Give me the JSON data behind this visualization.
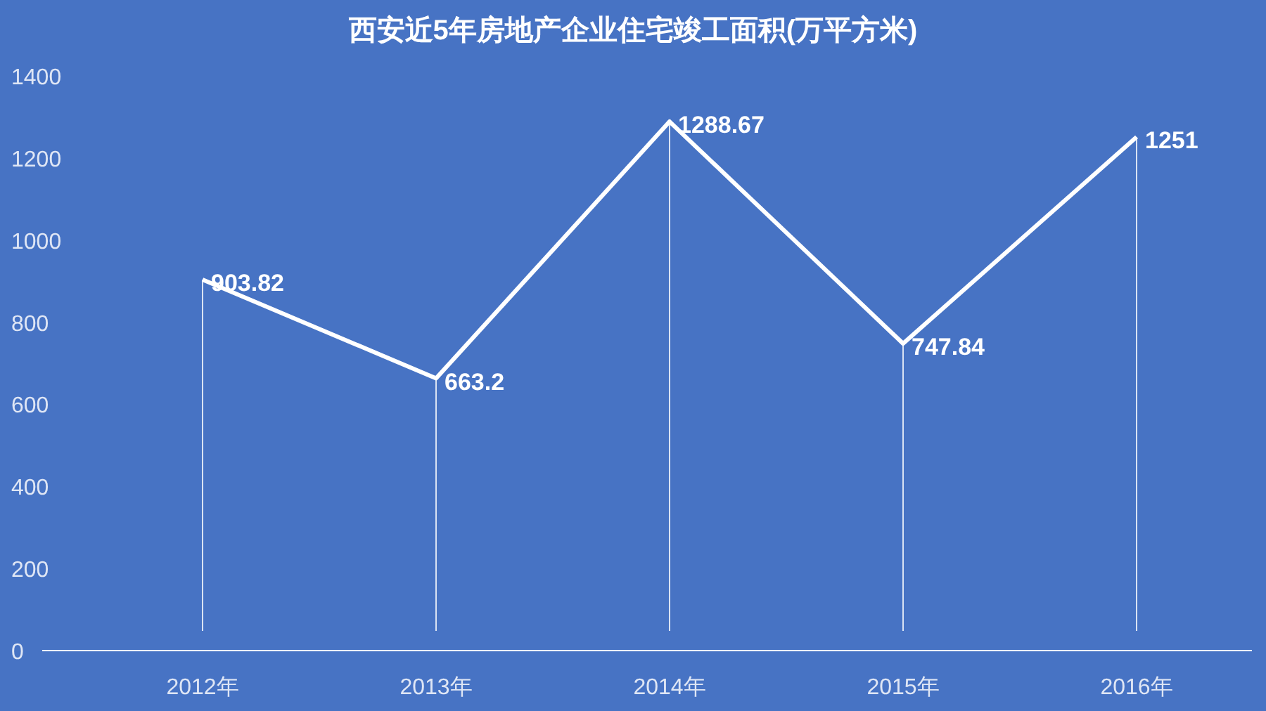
{
  "chart_data": {
    "type": "line",
    "title": "西安近5年房地产企业住宅竣工面积(万平方米)",
    "categories": [
      "2012年",
      "2013年",
      "2014年",
      "2015年",
      "2016年"
    ],
    "values": [
      903.82,
      663.2,
      1288.67,
      747.84,
      1251
    ],
    "color": "#ffffff",
    "ylim": [
      0,
      1400
    ],
    "yticks": [
      0,
      200,
      400,
      600,
      800,
      1000,
      1200,
      1400
    ],
    "data_labels": true,
    "grid": "x",
    "marker": "none",
    "line_style": "solid"
  }
}
